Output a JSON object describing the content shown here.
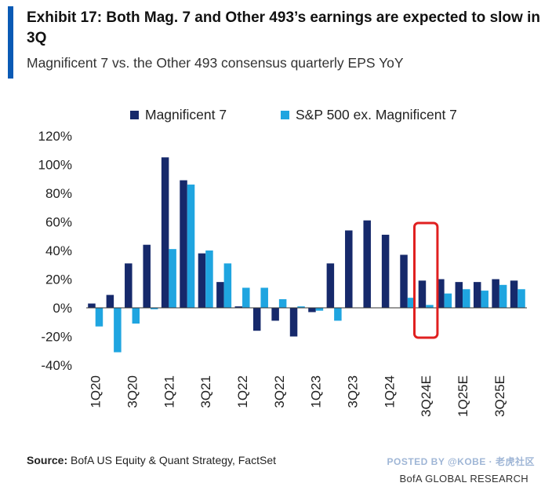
{
  "header": {
    "title": "Exhibit 17: Both Mag. 7 and Other 493’s earnings are expected to slow in 3Q",
    "subtitle": "Magnificent 7 vs. the Other 493 consensus quarterly EPS YoY"
  },
  "legend": [
    {
      "label": "Magnificent 7",
      "color": "#16296b"
    },
    {
      "label": "S&P 500 ex. Magnificent 7",
      "color": "#1fa5e0"
    }
  ],
  "chart_data": {
    "type": "bar",
    "title": "",
    "xlabel": "",
    "ylabel": "",
    "ylim": [
      -0.4,
      1.2
    ],
    "y_ticks": [
      "120%",
      "100%",
      "80%",
      "60%",
      "40%",
      "20%",
      "0%",
      "-20%",
      "-40%"
    ],
    "y_tick_values": [
      1.2,
      1.0,
      0.8,
      0.6,
      0.4,
      0.2,
      0.0,
      -0.2,
      -0.4
    ],
    "categories": [
      "1Q20",
      "2Q20",
      "3Q20",
      "4Q20",
      "1Q21",
      "2Q21",
      "3Q21",
      "4Q21",
      "1Q22",
      "2Q22",
      "3Q22",
      "4Q22",
      "1Q23",
      "2Q23",
      "3Q23",
      "4Q23",
      "1Q24",
      "2Q24",
      "3Q24E",
      "4Q24E",
      "1Q25E",
      "2Q25E",
      "3Q25E",
      "4Q25E"
    ],
    "x_tick_labels": [
      "1Q20",
      "",
      "3Q20",
      "",
      "1Q21",
      "",
      "3Q21",
      "",
      "1Q22",
      "",
      "3Q22",
      "",
      "1Q23",
      "",
      "3Q23",
      "",
      "1Q24",
      "",
      "3Q24E",
      "",
      "1Q25E",
      "",
      "3Q25E",
      ""
    ],
    "series": [
      {
        "name": "Magnificent 7",
        "values": [
          0.03,
          0.09,
          0.31,
          0.44,
          1.05,
          0.89,
          0.38,
          0.18,
          0.01,
          -0.16,
          -0.09,
          -0.2,
          -0.03,
          0.31,
          0.54,
          0.61,
          0.51,
          0.37,
          0.19,
          0.2,
          0.18,
          0.18,
          0.2,
          0.19
        ]
      },
      {
        "name": "S&P 500 ex. Magnificent 7",
        "values": [
          -0.13,
          -0.31,
          -0.11,
          -0.01,
          0.41,
          0.86,
          0.4,
          0.31,
          0.14,
          0.14,
          0.06,
          0.01,
          -0.02,
          -0.09,
          0.0,
          0.0,
          0.0,
          0.07,
          0.02,
          0.1,
          0.13,
          0.12,
          0.16,
          0.13
        ]
      }
    ],
    "highlight_category": "3Q24E",
    "highlight_color": "#e02020",
    "grid": false
  },
  "footer": {
    "source_label": "Source:",
    "source_text": " BofA US Equity & Quant Strategy, FactSet",
    "brand": "BofA GLOBAL RESEARCH",
    "watermark": "POSTED BY @KOBE · 老虎社区"
  }
}
